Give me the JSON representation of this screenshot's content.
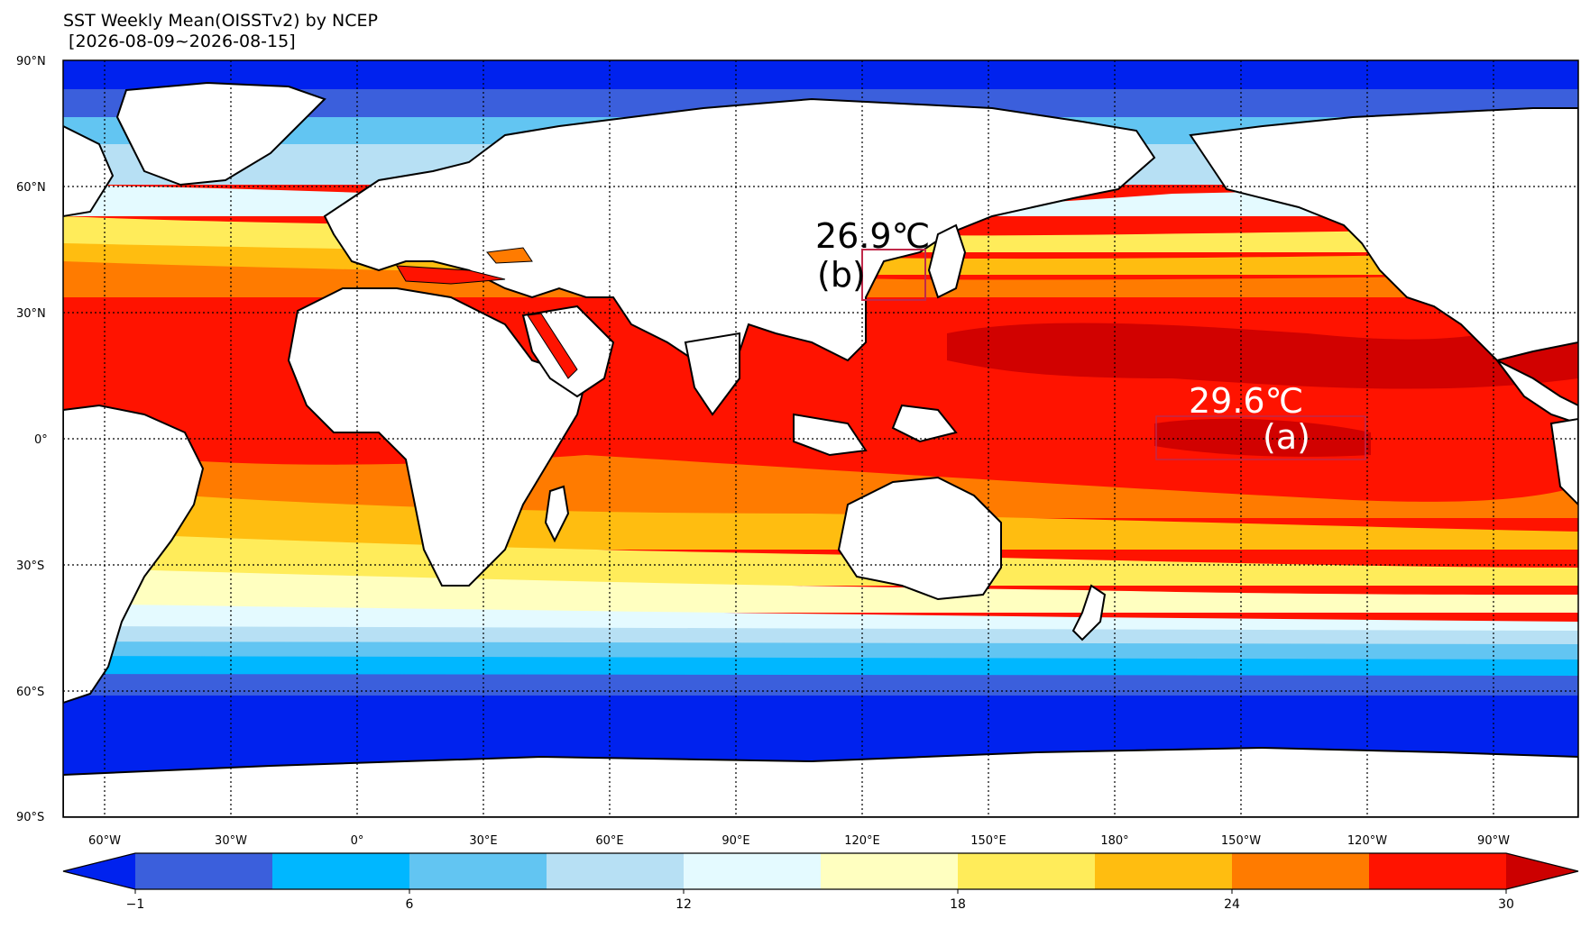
{
  "title": {
    "line1": "SST Weekly Mean(OISSTv2) by NCEP",
    "line2": " [2026-08-09~2026-08-15]"
  },
  "map": {
    "projection": "cylindrical, central longitude 150E (left edge 70W)",
    "lat_labels": [
      "90°N",
      "60°N",
      "30°N",
      "0°",
      "30°S",
      "60°S",
      "90°S"
    ],
    "lon_labels": [
      "60°W",
      "30°W",
      "0°",
      "30°E",
      "60°E",
      "90°E",
      "120°E",
      "150°E",
      "180°",
      "150°W",
      "120°W",
      "90°W"
    ],
    "grid": "dotted black",
    "land_color": "#ffffff",
    "coastline_color": "#000000"
  },
  "annotations": [
    {
      "id": "a",
      "label": "(a)",
      "value": "29.6℃",
      "region": "equatorial central Pacific box (approx. 5°S–5°N, 170°W–120°W)",
      "text_color": "#ffffff",
      "box_color": "#c0294a"
    },
    {
      "id": "b",
      "label": "(b)",
      "value": "26.9℃",
      "region": "Yellow Sea / East China Sea box (approx. 33°N–45°N, 120°E–135°E)",
      "text_color": "#000000",
      "box_color": "#c0294a"
    }
  ],
  "colorbar": {
    "extend": "both",
    "tick_labels": [
      "−1",
      "6",
      "12",
      "18",
      "24",
      "30"
    ],
    "colors": [
      "#0022ee",
      "#3b5fdc",
      "#00b7ff",
      "#62c5f2",
      "#b7e0f4",
      "#e4faff",
      "#ffffc0",
      "#ffec5a",
      "#ffbd10",
      "#ff7b00",
      "#ff1300",
      "#cc0000"
    ]
  }
}
